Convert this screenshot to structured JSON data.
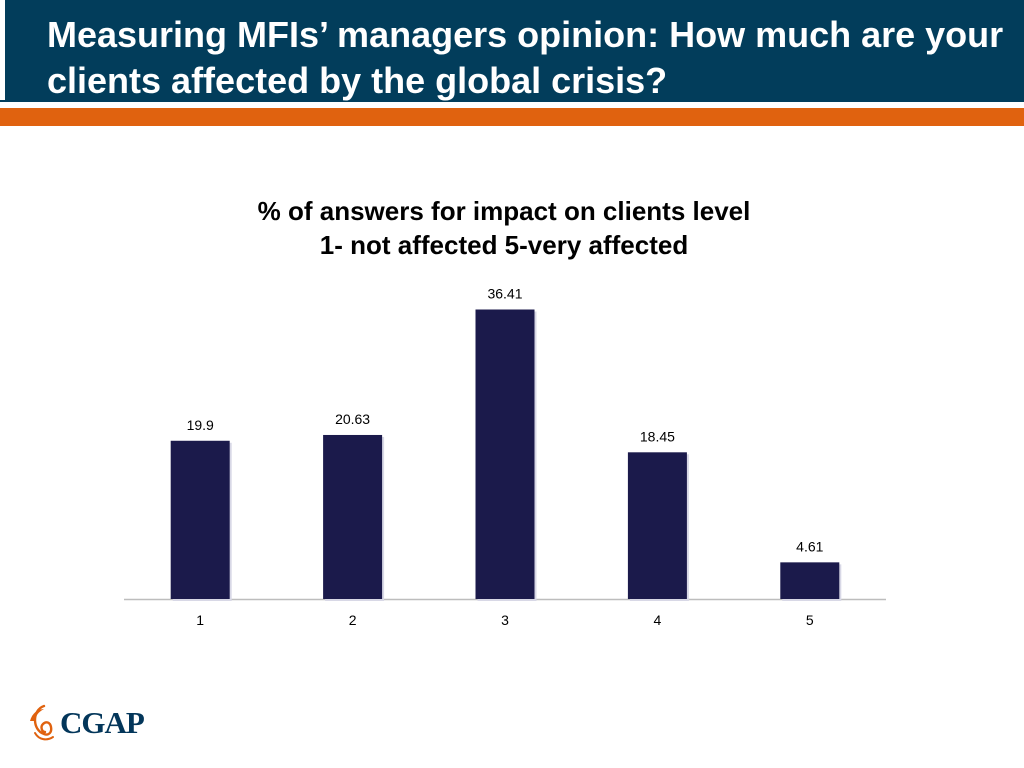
{
  "slide": {
    "title": "Measuring MFIs’ managers opinion: How much are your clients affected by the global crisis?"
  },
  "colors": {
    "header_background": "#023d5b",
    "accent_bar": "#e0620f",
    "bar_fill": "#1b1a4b",
    "logo_blue": "#03365a",
    "logo_orange": "#e0620f"
  },
  "logo": {
    "text": "CGAP",
    "icon": "cgap-swirl-icon"
  },
  "chart_data": {
    "type": "bar",
    "title": "% of answers for impact on clients level",
    "subtitle": "1- not affected 5-very affected",
    "categories": [
      "1",
      "2",
      "3",
      "4",
      "5"
    ],
    "values": [
      19.9,
      20.63,
      36.41,
      18.45,
      4.61
    ],
    "value_labels": [
      "19.9",
      "20.63",
      "36.41",
      "18.45",
      "4.61"
    ],
    "xlabel": "",
    "ylabel": "",
    "ylim": [
      0,
      40
    ],
    "grid": false,
    "legend": "none"
  }
}
